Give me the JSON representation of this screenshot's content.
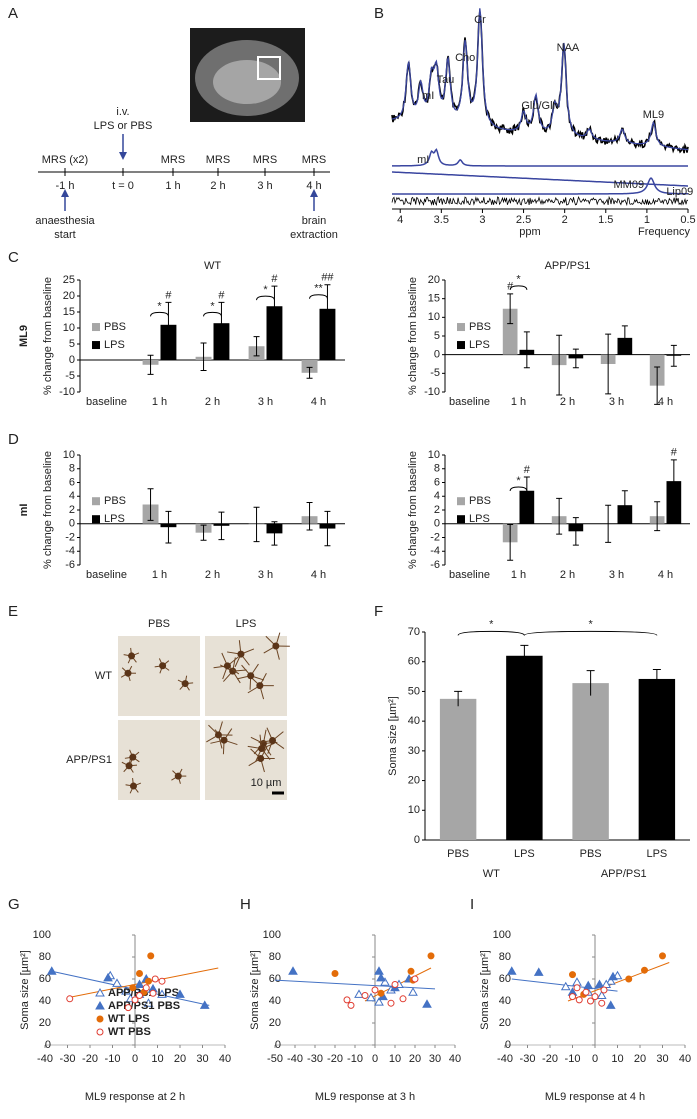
{
  "panel_labels": [
    "A",
    "B",
    "C",
    "D",
    "E",
    "F",
    "G",
    "H",
    "I"
  ],
  "timeline": {
    "steps": [
      {
        "above": "MRS (x2)",
        "below": "-1 h"
      },
      {
        "below": "t = 0"
      },
      {
        "above": "MRS",
        "below": "1 h"
      },
      {
        "above": "MRS",
        "below": "2 h"
      },
      {
        "above": "MRS",
        "below": "3 h"
      },
      {
        "above": "MRS",
        "below": "4 h"
      }
    ],
    "injection": [
      "i.v.",
      "LPS or PBS"
    ],
    "start": [
      "anaesthesia",
      "start"
    ],
    "end": [
      "brain",
      "extraction"
    ]
  },
  "spectrum": {
    "peaks": [
      "Cr",
      "Cho",
      "Tau",
      "mI",
      "Glu/Gln",
      "NAA",
      "ML9"
    ],
    "components": [
      "mI",
      "MM09",
      "Lip09"
    ],
    "xlabel": "ppm",
    "xlabel2": "Frequency",
    "xlim": [
      4.1,
      0.5
    ],
    "xticks": [
      4,
      3.5,
      3,
      2.5,
      2,
      1.5,
      1,
      0.5
    ]
  },
  "micrographs": {
    "columns": [
      "PBS",
      "LPS"
    ],
    "rows": [
      "WT",
      "APP/PS1"
    ],
    "scale_bar": "10 µm"
  },
  "chart_data": [
    {
      "type": "bar",
      "title": "WT",
      "row_label": "ML9",
      "ylabel": "% change from baseline",
      "categories": [
        "baseline",
        "1 h",
        "2 h",
        "3 h",
        "4 h"
      ],
      "ylim": [
        -10,
        25
      ],
      "yticks": [
        -10,
        -5,
        0,
        5,
        10,
        15,
        20,
        25
      ],
      "series": [
        {
          "name": "PBS",
          "color": "#a6a6a6",
          "values": [
            null,
            -1.5,
            1,
            4.3,
            -4
          ],
          "errors": [
            null,
            3,
            4.3,
            3,
            1.7
          ]
        },
        {
          "name": "LPS",
          "color": "#000000",
          "values": [
            null,
            11,
            11.5,
            16.8,
            16
          ],
          "errors": [
            null,
            7,
            6.5,
            6.3,
            7.5
          ],
          "marks": [
            null,
            "#",
            "#",
            "#",
            "##"
          ]
        }
      ],
      "pair_marks": [
        null,
        "*",
        "*",
        "*",
        "**"
      ]
    },
    {
      "type": "bar",
      "title": "APP/PS1",
      "ylabel": "% change from baseline",
      "categories": [
        "baseline",
        "1 h",
        "2 h",
        "3 h",
        "4 h"
      ],
      "ylim": [
        -10,
        20
      ],
      "yticks": [
        -10,
        -5,
        0,
        5,
        10,
        15,
        20
      ],
      "series": [
        {
          "name": "PBS",
          "color": "#a6a6a6",
          "values": [
            null,
            12.3,
            -2.8,
            -2.5,
            -8.3
          ],
          "errors": [
            null,
            4,
            8,
            8,
            5
          ],
          "marks": [
            null,
            "#",
            null,
            null,
            null
          ]
        },
        {
          "name": "LPS",
          "color": "#000000",
          "values": [
            null,
            1.3,
            -1,
            4.5,
            -0.3
          ],
          "errors": [
            null,
            4.8,
            2.5,
            3.2,
            2.8
          ]
        }
      ],
      "pair_marks": [
        null,
        "*",
        null,
        null,
        null
      ]
    },
    {
      "type": "bar",
      "row_label": "mI",
      "ylabel": "% change from baseline",
      "categories": [
        "baseline",
        "1 h",
        "2 h",
        "3 h",
        "4 h"
      ],
      "ylim": [
        -6,
        10
      ],
      "yticks": [
        -6,
        -4,
        -2,
        0,
        2,
        4,
        6,
        8,
        10
      ],
      "series": [
        {
          "name": "PBS",
          "color": "#a6a6a6",
          "values": [
            null,
            2.8,
            -1.3,
            -0.1,
            1.1
          ],
          "errors": [
            null,
            2.3,
            1.1,
            2.5,
            2
          ]
        },
        {
          "name": "LPS",
          "color": "#000000",
          "values": [
            null,
            -0.5,
            -0.3,
            -1.4,
            -0.7
          ],
          "errors": [
            null,
            2.3,
            2,
            1.7,
            2.5
          ]
        }
      ]
    },
    {
      "type": "bar",
      "ylabel": "% change from baseline",
      "categories": [
        "baseline",
        "1 h",
        "2 h",
        "3 h",
        "4 h"
      ],
      "ylim": [
        -6,
        10
      ],
      "yticks": [
        -6,
        -4,
        -2,
        0,
        2,
        4,
        6,
        8,
        10
      ],
      "series": [
        {
          "name": "PBS",
          "color": "#a6a6a6",
          "values": [
            null,
            -2.7,
            1.1,
            0,
            1.1
          ],
          "errors": [
            null,
            2.6,
            2.6,
            2.7,
            2.1
          ]
        },
        {
          "name": "LPS",
          "color": "#000000",
          "values": [
            null,
            4.8,
            -1.1,
            2.7,
            6.2
          ],
          "errors": [
            null,
            2,
            2,
            2.1,
            3.1
          ],
          "marks": [
            null,
            "#",
            null,
            null,
            "#"
          ]
        }
      ],
      "pair_marks": [
        null,
        "*",
        null,
        null,
        null
      ]
    },
    {
      "type": "bar",
      "ylabel": "Soma size [µm²]",
      "categories": [
        "PBS",
        "LPS",
        "PBS",
        "LPS"
      ],
      "groups": [
        "WT",
        "APP/PS1"
      ],
      "values": [
        47.5,
        62,
        52.8,
        54.2
      ],
      "errors": [
        2.5,
        3.5,
        4.2,
        3.2
      ],
      "colors": [
        "#a6a6a6",
        "#000000",
        "#a6a6a6",
        "#000000"
      ],
      "ylim": [
        0,
        70
      ],
      "yticks": [
        0,
        10,
        20,
        30,
        40,
        50,
        60,
        70
      ],
      "significance": [
        "*",
        "*"
      ]
    },
    {
      "type": "scatter",
      "xlabel": "ML9 response at 2 h",
      "ylabel": "Soma size [µm²]",
      "legend": true,
      "xlim": [
        -40,
        40
      ],
      "xticks": [
        -40,
        -30,
        -20,
        -10,
        0,
        10,
        20,
        30,
        40
      ],
      "ylim": [
        0,
        100
      ],
      "yticks": [
        0,
        20,
        40,
        60,
        80,
        100
      ],
      "series": [
        {
          "name": "APP/PS1 LPS",
          "color": "#4472c4",
          "marker": "triangle",
          "filled": false,
          "x": [
            -11,
            -8,
            -4,
            2,
            6,
            12,
            -2
          ],
          "y": [
            63,
            56,
            49,
            46,
            38,
            46,
            42
          ]
        },
        {
          "name": "APP/PS1 PBS",
          "color": "#4472c4",
          "marker": "triangle",
          "filled": true,
          "x": [
            -37,
            -12,
            2,
            5,
            20,
            31,
            8
          ],
          "y": [
            67,
            61,
            55,
            60,
            46,
            36,
            51
          ]
        },
        {
          "name": "WT LPS",
          "color": "#e36c09",
          "marker": "circle",
          "filled": true,
          "x": [
            2,
            7,
            6,
            -1,
            4
          ],
          "y": [
            65,
            81,
            58,
            52,
            48
          ]
        },
        {
          "name": "WT PBS",
          "color": "#e03c31",
          "marker": "circle",
          "filled": false,
          "x": [
            -29,
            0,
            5,
            9,
            12,
            -3,
            2,
            8
          ],
          "y": [
            42,
            41,
            52,
            60,
            58,
            34,
            45,
            47
          ]
        }
      ],
      "trendlines": [
        {
          "color": "#4472c4",
          "x": [
            -37,
            33
          ],
          "y": [
            67,
            36
          ]
        },
        {
          "color": "#e36c09",
          "x": [
            -30,
            37
          ],
          "y": [
            43,
            70
          ]
        }
      ]
    },
    {
      "type": "scatter",
      "xlabel": "ML9 response at 3 h",
      "ylabel": "Soma size [µm²]",
      "xlim": [
        -50,
        40
      ],
      "xticks": [
        -50,
        -40,
        -30,
        -20,
        -10,
        0,
        10,
        20,
        30,
        40
      ],
      "ylim": [
        0,
        100
      ],
      "yticks": [
        0,
        20,
        40,
        60,
        80,
        100
      ],
      "series": [
        {
          "color": "#4472c4",
          "marker": "triangle",
          "filled": false,
          "x": [
            -8,
            -2,
            2,
            5,
            8,
            12,
            19
          ],
          "y": [
            46,
            43,
            39,
            57,
            50,
            55,
            48
          ]
        },
        {
          "color": "#4472c4",
          "marker": "triangle",
          "filled": true,
          "x": [
            -41,
            3,
            2,
            10,
            26,
            17,
            4
          ],
          "y": [
            67,
            61,
            67,
            52,
            37,
            60,
            44
          ]
        },
        {
          "color": "#e36c09",
          "marker": "circle",
          "filled": true,
          "x": [
            -20,
            28,
            19,
            3,
            18
          ],
          "y": [
            65,
            81,
            59,
            47,
            67
          ]
        },
        {
          "color": "#e03c31",
          "marker": "circle",
          "filled": false,
          "x": [
            -14,
            -12,
            -5,
            0,
            8,
            14,
            10,
            20
          ],
          "y": [
            41,
            36,
            45,
            50,
            38,
            42,
            55,
            60
          ]
        }
      ],
      "trendlines": [
        {
          "color": "#4472c4",
          "x": [
            -50,
            30
          ],
          "y": [
            59,
            51
          ]
        },
        {
          "color": "#e36c09",
          "x": [
            -5,
            28
          ],
          "y": [
            40,
            70
          ]
        }
      ]
    },
    {
      "type": "scatter",
      "xlabel": "ML9 response at 4 h",
      "ylabel": "Soma size [µm²]",
      "xlim": [
        -40,
        40
      ],
      "xticks": [
        -40,
        -30,
        -20,
        -10,
        0,
        10,
        20,
        30,
        40
      ],
      "ylim": [
        0,
        100
      ],
      "yticks": [
        0,
        20,
        40,
        60,
        80,
        100
      ],
      "series": [
        {
          "color": "#4472c4",
          "marker": "triangle",
          "filled": false,
          "x": [
            -3,
            3,
            7,
            10,
            -8,
            -13,
            5
          ],
          "y": [
            48,
            45,
            58,
            63,
            57,
            53,
            55
          ]
        },
        {
          "color": "#4472c4",
          "marker": "triangle",
          "filled": true,
          "x": [
            -37,
            -25,
            8,
            2,
            7,
            -3,
            -10
          ],
          "y": [
            67,
            66,
            62,
            55,
            36,
            54,
            48
          ]
        },
        {
          "color": "#e36c09",
          "marker": "circle",
          "filled": true,
          "x": [
            -10,
            30,
            22,
            15,
            -5
          ],
          "y": [
            64,
            81,
            68,
            60,
            46
          ]
        },
        {
          "color": "#e03c31",
          "marker": "circle",
          "filled": false,
          "x": [
            -10,
            -7,
            -4,
            0,
            -2,
            4,
            -8,
            3
          ],
          "y": [
            44,
            41,
            48,
            44,
            40,
            50,
            52,
            38
          ]
        }
      ],
      "trendlines": [
        {
          "color": "#4472c4",
          "x": [
            -37,
            10
          ],
          "y": [
            60,
            49
          ]
        },
        {
          "color": "#e36c09",
          "x": [
            -12,
            33
          ],
          "y": [
            40,
            75
          ]
        }
      ]
    }
  ]
}
